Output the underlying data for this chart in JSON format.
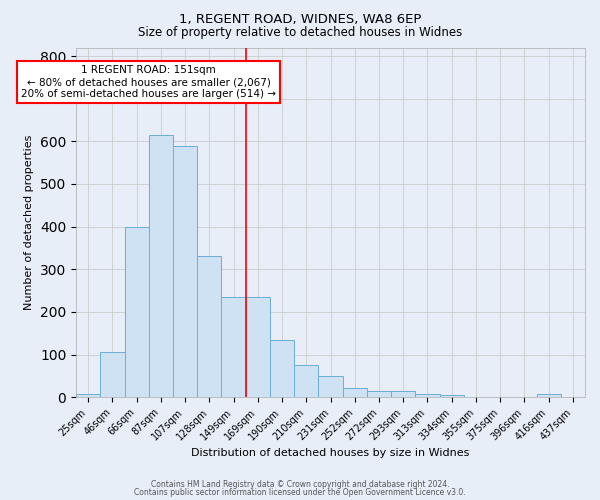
{
  "title1": "1, REGENT ROAD, WIDNES, WA8 6EP",
  "title2": "Size of property relative to detached houses in Widnes",
  "xlabel": "Distribution of detached houses by size in Widnes",
  "ylabel": "Number of detached properties",
  "categories": [
    "25sqm",
    "46sqm",
    "66sqm",
    "87sqm",
    "107sqm",
    "128sqm",
    "149sqm",
    "169sqm",
    "190sqm",
    "210sqm",
    "231sqm",
    "252sqm",
    "272sqm",
    "293sqm",
    "313sqm",
    "334sqm",
    "355sqm",
    "375sqm",
    "396sqm",
    "416sqm",
    "437sqm"
  ],
  "values": [
    8,
    105,
    400,
    615,
    590,
    330,
    235,
    235,
    135,
    75,
    50,
    22,
    15,
    15,
    8,
    5,
    0,
    0,
    0,
    8,
    0
  ],
  "bar_color": "#cfe2f3",
  "bar_edge_color": "#6baed6",
  "red_line_x": 6.5,
  "annotation_text": "1 REGENT ROAD: 151sqm\n← 80% of detached houses are smaller (2,067)\n20% of semi-detached houses are larger (514) →",
  "annotation_box_color": "white",
  "annotation_box_edge_color": "red",
  "footer_text1": "Contains HM Land Registry data © Crown copyright and database right 2024.",
  "footer_text2": "Contains public sector information licensed under the Open Government Licence v3.0.",
  "ylim": [
    0,
    820
  ],
  "yticks": [
    0,
    100,
    200,
    300,
    400,
    500,
    600,
    700,
    800
  ],
  "grid_color": "#cccccc",
  "background_color": "#e8eef8",
  "title1_fontsize": 9.5,
  "title2_fontsize": 8.5
}
